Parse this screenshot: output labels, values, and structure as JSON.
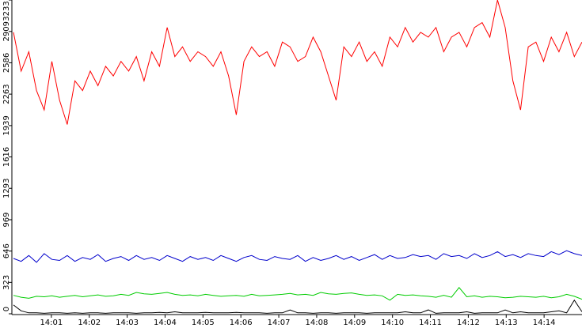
{
  "chart_data": {
    "type": "line",
    "xlim": [
      0,
      15
    ],
    "xticks": [
      {
        "value": 1,
        "label": "14:01"
      },
      {
        "value": 2,
        "label": "14:02"
      },
      {
        "value": 3,
        "label": "14:03"
      },
      {
        "value": 4,
        "label": "14:04"
      },
      {
        "value": 5,
        "label": "14:05"
      },
      {
        "value": 6,
        "label": "14:06"
      },
      {
        "value": 7,
        "label": "14:07"
      },
      {
        "value": 8,
        "label": "14:08"
      },
      {
        "value": 9,
        "label": "14:09"
      },
      {
        "value": 10,
        "label": "14:10"
      },
      {
        "value": 11,
        "label": "14:11"
      },
      {
        "value": 12,
        "label": "14:12"
      },
      {
        "value": 13,
        "label": "14:13"
      },
      {
        "value": 14,
        "label": "14:14"
      }
    ],
    "ylim": [
      0,
      3233
    ],
    "yticks": [
      0,
      323,
      646,
      969,
      1293,
      1616,
      1939,
      2263,
      2586,
      2909,
      3233
    ],
    "series": [
      {
        "color": "#ff0000",
        "values": [
          2900,
          2500,
          2700,
          2300,
          2100,
          2600,
          2200,
          1950,
          2400,
          2300,
          2500,
          2350,
          2550,
          2450,
          2600,
          2500,
          2650,
          2400,
          2700,
          2550,
          2950,
          2650,
          2750,
          2600,
          2700,
          2650,
          2550,
          2700,
          2450,
          2050,
          2600,
          2750,
          2650,
          2700,
          2550,
          2800,
          2750,
          2600,
          2650,
          2850,
          2700,
          2450,
          2200,
          2750,
          2650,
          2800,
          2600,
          2700,
          2550,
          2850,
          2750,
          2950,
          2800,
          2900,
          2850,
          2950,
          2700,
          2850,
          2900,
          2750,
          2950,
          3000,
          2850,
          3233,
          2950,
          2400,
          2100,
          2750,
          2800,
          2600,
          2850,
          2700,
          2900,
          2650,
          2800
        ]
      },
      {
        "color": "#0000cc",
        "values": [
          570,
          540,
          600,
          530,
          620,
          560,
          550,
          600,
          540,
          580,
          560,
          610,
          540,
          570,
          590,
          550,
          600,
          560,
          580,
          550,
          600,
          570,
          540,
          590,
          560,
          580,
          550,
          600,
          570,
          540,
          580,
          600,
          560,
          550,
          590,
          570,
          560,
          600,
          540,
          580,
          550,
          570,
          600,
          560,
          590,
          550,
          580,
          610,
          560,
          600,
          570,
          580,
          610,
          590,
          600,
          560,
          620,
          590,
          600,
          570,
          620,
          580,
          600,
          640,
          590,
          610,
          580,
          620,
          600,
          590,
          640,
          610,
          650,
          620,
          600
        ]
      },
      {
        "color": "#00cc00",
        "values": [
          190,
          170,
          160,
          180,
          175,
          185,
          170,
          180,
          190,
          175,
          185,
          195,
          180,
          185,
          200,
          190,
          220,
          205,
          200,
          210,
          220,
          200,
          190,
          195,
          185,
          200,
          190,
          180,
          185,
          190,
          180,
          200,
          185,
          190,
          195,
          200,
          210,
          195,
          200,
          190,
          220,
          205,
          200,
          210,
          215,
          200,
          190,
          195,
          185,
          140,
          200,
          190,
          195,
          185,
          180,
          170,
          190,
          170,
          270,
          175,
          185,
          170,
          180,
          175,
          165,
          170,
          180,
          175,
          170,
          180,
          165,
          175,
          200,
          180,
          150
        ]
      },
      {
        "color": "#000000",
        "values": [
          90,
          30,
          10,
          10,
          5,
          10,
          10,
          5,
          10,
          5,
          10,
          10,
          5,
          10,
          10,
          10,
          5,
          10,
          10,
          15,
          10,
          20,
          10,
          10,
          10,
          15,
          10,
          10,
          10,
          15,
          10,
          10,
          10,
          5,
          10,
          10,
          40,
          10,
          10,
          5,
          10,
          10,
          5,
          10,
          10,
          10,
          5,
          10,
          10,
          10,
          10,
          20,
          10,
          10,
          40,
          5,
          10,
          10,
          10,
          20,
          5,
          10,
          10,
          10,
          40,
          10,
          20,
          10,
          10,
          10,
          20,
          30,
          10,
          140,
          20
        ]
      }
    ]
  }
}
